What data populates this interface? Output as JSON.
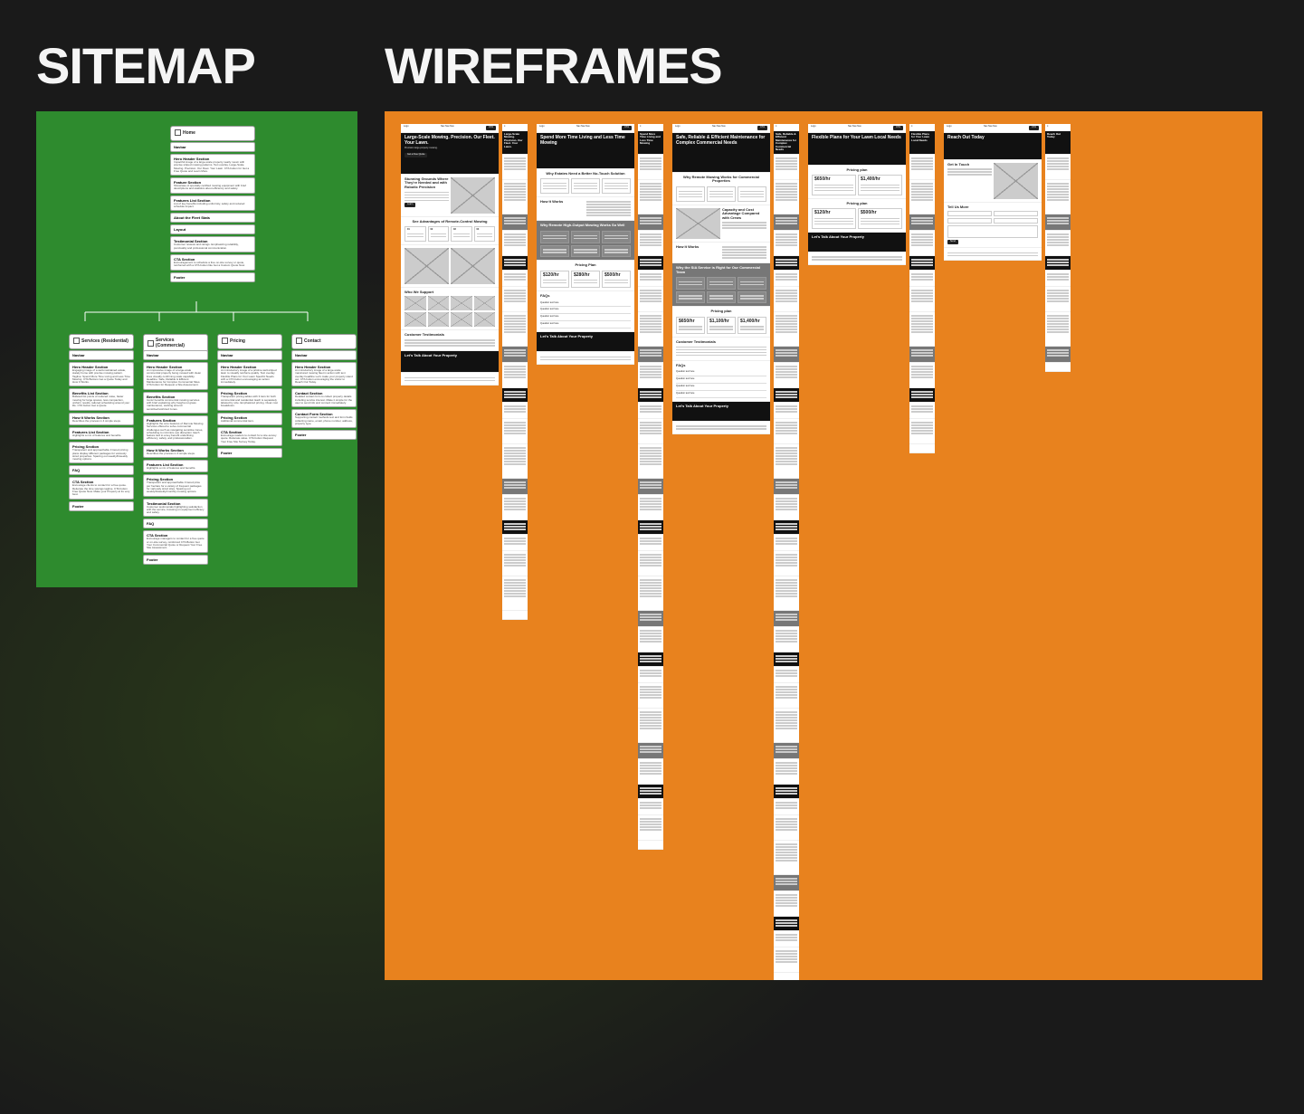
{
  "titles": {
    "sitemap": "SITEMAP",
    "wireframes": "WIREFRAMES"
  },
  "colors": {
    "background": "#1a1a1a",
    "sitemap_panel": "#2e8b2e",
    "wireframes_panel": "#e8821e",
    "card_bg": "#ffffff",
    "wf_dark": "#111111",
    "wf_gray": "#777777"
  },
  "sitemap": {
    "home": {
      "title": "Home",
      "sections": [
        {
          "title": "Navbar",
          "desc": ""
        },
        {
          "title": "Hero Header Section",
          "desc": "Impactful image of a large-scale property neatly mown with precise striped mowing patterns. Text overlay. Large-Scale Mowing. Precision. Our Fleet. Your Lawn. CTA button for Get a Free Quote and Learn More."
        },
        {
          "title": "Feature Section",
          "desc": "Showcase of specialty certified mowing equipment with brief descriptions and statistics about efficiency and safety."
        },
        {
          "title": "Features List Section",
          "desc": "List of key benefits including uniformity, safety and reduced schedule impact."
        },
        {
          "title": "About the Fleet Stats",
          "desc": ""
        },
        {
          "title": "Layout",
          "desc": ""
        },
        {
          "title": "Testimonial Section",
          "desc": "Customer reviews and ratings. Emphasizing reliability, punctuality and professional communication."
        },
        {
          "title": "CTA Section",
          "desc": "Encouragement to schedule a free on-site survey or quote, reinforced with a CTA button like Get a Custom Quote Now."
        },
        {
          "title": "Footer",
          "desc": ""
        }
      ]
    },
    "children": [
      {
        "title": "Services (Residential)",
        "sections": [
          {
            "title": "Navbar",
            "desc": ""
          },
          {
            "title": "Hero Header Section",
            "desc": "Engaging image of a well-maintained estate, stately home with precise mowing pattern. Tagline: Spend More Time Living and Less Time Mowing. CTA Buttons Get a Quote Today and How It Works."
          },
          {
            "title": "Benefits List Section",
            "desc": "Bulleted list points of reduced noise, faster mowing for large spaces, less compaction, uniform results, tailored scheduling around your life. CTA button Get a Quote."
          },
          {
            "title": "How It Works Section",
            "desc": "Describes the process in 4 simple steps."
          },
          {
            "title": "Features List Section",
            "desc": "Highlights a mix of features and benefits."
          },
          {
            "title": "Pricing Section",
            "desc": "Transparent and approachable 3 tiered pricing plans display different packages for variously sized properties. Spacing out weekly/biweekly mowing options."
          },
          {
            "title": "FAQ",
            "desc": ""
          },
          {
            "title": "CTA Section",
            "desc": "Encourage clients to contact for a free quote. Reiterate the time savings tagline. CTA button Free Quote Now. Make your Property at its very best."
          },
          {
            "title": "Footer",
            "desc": ""
          }
        ]
      },
      {
        "title": "Services (Commercial)",
        "sections": [
          {
            "title": "Navbar",
            "desc": ""
          },
          {
            "title": "Hero Header Section",
            "desc": "An impressive image of a large-scale commercial property being mowed with clean lines visually confirming scale capability. Headline: Safe, Reliable & Efficient Maintenance for Complex Commercial Sites. CTA button for Request a Site Assessment."
          },
          {
            "title": "Benefits Section",
            "desc": "Iconic benefits commercial mowing services with brief explaining why height-cut grass maintenance, working around sensitive/restricted zones."
          },
          {
            "title": "Features Section",
            "desc": "Highlights the core features of Remote Mowing Services offered to solve commercial challenges such as navigating sensitive zones, scheduling to minimize ops disruption. Each feature tied to a key benefit underlining efficiency, safety, and professionalism."
          },
          {
            "title": "How It Works Section",
            "desc": "Describes the process in 4 simple steps."
          },
          {
            "title": "Features List Section",
            "desc": "Highlights a mix of features and benefits."
          },
          {
            "title": "Pricing Section",
            "desc": "Transparent and approachable 3 tiered price per hectare for a variety of frequent packages for variously sized sites. Spacing out weekly/biweekly/monthly mowing options."
          },
          {
            "title": "Testimonial Section",
            "desc": "Customer testimonials highlighting satisfaction with the service, focusing on equipment efficacy and safety."
          },
          {
            "title": "FAQ",
            "desc": ""
          },
          {
            "title": "CTA Section",
            "desc": "Encourage managers to contact for a free quote or on-site survey, reinforced CTA Button Get Your Commercial Quote or Request Your Free Site Assessment."
          },
          {
            "title": "Footer",
            "desc": ""
          }
        ]
      },
      {
        "title": "Pricing",
        "sections": [
          {
            "title": "Navbar",
            "desc": ""
          },
          {
            "title": "Hero Header Section",
            "desc": "An introductory image of a pristine well-striped lawn to visually reinforce quality. Text overlay Flexible Plans for Your Lawn Specific Needs with a CTA button encouraging an action immediately."
          },
          {
            "title": "Pricing Section",
            "desc": "Transparent pricing tables with 3 tiers for both commercial and residential. Each is separately labeled by size. Emphasized pricing. Clear cost breakdown."
          },
          {
            "title": "Pricing Section",
            "desc": "Additional commercial tiers."
          },
          {
            "title": "CTA Section",
            "desc": "Encourage readers to contact for a site-survey quote. Reiterate value. CTA button Request Your Free Site Survey Today."
          },
          {
            "title": "Footer",
            "desc": ""
          }
        ]
      },
      {
        "title": "Contact",
        "sections": [
          {
            "title": "Navbar",
            "desc": ""
          },
          {
            "title": "Hero Header Section",
            "desc": "An introductory image of a large-scale manicured mowing fleet in action with text overlay headline Let's make your property stand out. CTA button encouraging the visitor to Reach Out Today."
          },
          {
            "title": "Contact Section",
            "desc": "Detailed contact form to collect property details including service interest. Make it simple for the user to send info and connect immediately."
          },
          {
            "title": "Contact Form Section",
            "desc": "Supporting contact methods text and form fields collecting name, email, phone number, address, property type."
          },
          {
            "title": "Footer",
            "desc": ""
          }
        ]
      }
    ]
  },
  "wireframes": {
    "pages": [
      {
        "id": "home",
        "hero_title": "Large-Scale Mowing. Precision. Our Fleet. Your Lawn.",
        "feature_title": "Stunning Grounds Where They're Needed and with Robotic Precision",
        "section_a": "See Advantages of Remote-Control Mowing",
        "grid_title": "Who We Support",
        "testimonials": "Customer Testimonials",
        "cta_dark": "Let's Talk About Your Property",
        "mobile_height": 520
      },
      {
        "id": "residential",
        "hero_title": "Spend More Time Living and Less Time Mowing",
        "feature_title": "Why Estates Need a Better No-Touch Solution",
        "how_title": "How It Works",
        "section_gray": "Why Remote High-Output Mowing Works So Well",
        "pricing_title": "Pricing Plan",
        "prices": [
          "$120/hr",
          "$280/hr",
          "$500/hr"
        ],
        "faq_title": "FAQs",
        "cta_dark": "Let's Talk About Your Property",
        "mobile_height": 780
      },
      {
        "id": "commercial",
        "hero_title": "Safe, Reliable & Efficient Maintenance for Complex Commercial Needs",
        "feature_title": "Why Remote Mowing Works for Commercial Properties",
        "sub_a": "Capacity and Cost Advantage Compared with Crews",
        "how_title": "How It Works",
        "section_gray": "Why the SiA Service is Right for Our Commercial Team",
        "pricing_title": "Pricing plan",
        "prices": [
          "$650/hr",
          "$1,100/hr",
          "$1,400/hr"
        ],
        "testimonials": "Customer Testimonials",
        "faq_title": "FAQs",
        "cta_dark": "Let's Talk About Your Property",
        "mobile_height": 930
      },
      {
        "id": "pricing",
        "hero_title": "Flexible Plans for Your Lawn Local Needs",
        "pricing_title_a": "Pricing plan",
        "prices_a": [
          "$650/hr",
          "$1,400/hr"
        ],
        "pricing_title_b": "Pricing plan",
        "prices_b": [
          "$120/hr",
          "$500/hr"
        ],
        "cta_dark": "Let's Talk About Your Property",
        "mobile_height": 340
      },
      {
        "id": "contact",
        "hero_title": "Reach Out Today",
        "contact_title": "Get In Touch",
        "contact_sub": "Tell Us More",
        "mobile_height": 260
      }
    ]
  }
}
